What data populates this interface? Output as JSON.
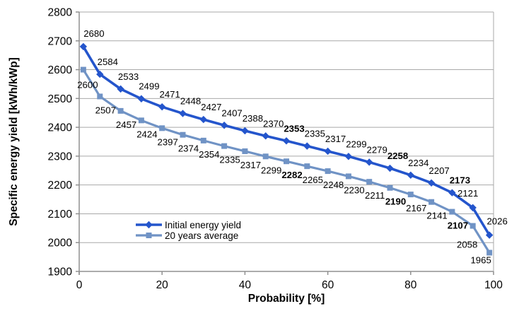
{
  "chart_data": {
    "type": "line",
    "title": "",
    "xlabel": "Probability [%]",
    "ylabel": "Specific energy yield [kWh/kWp]",
    "xlim": [
      0,
      100
    ],
    "ylim": [
      1900,
      2800
    ],
    "x_ticks": [
      0,
      20,
      40,
      60,
      80,
      100
    ],
    "y_ticks": [
      1900,
      2000,
      2100,
      2200,
      2300,
      2400,
      2500,
      2600,
      2700,
      2800
    ],
    "grid": "horizontal",
    "legend_position": "inside-bottom-left",
    "x": [
      1,
      5,
      10,
      15,
      20,
      25,
      30,
      35,
      40,
      45,
      50,
      55,
      60,
      65,
      70,
      75,
      80,
      85,
      90,
      95,
      99
    ],
    "series": [
      {
        "name": "Initial energy yield",
        "marker": "diamond",
        "color": "#2455cc",
        "values": [
          2680,
          2584,
          2533,
          2499,
          2471,
          2448,
          2427,
          2407,
          2388,
          2370,
          2353,
          2335,
          2317,
          2299,
          2279,
          2258,
          2234,
          2207,
          2173,
          2121,
          2026
        ],
        "bold_label_indices": [
          10,
          15,
          18
        ]
      },
      {
        "name": "20 years average",
        "marker": "square",
        "color": "#7093c5",
        "values": [
          2600,
          2507,
          2457,
          2424,
          2397,
          2374,
          2354,
          2335,
          2317,
          2299,
          2282,
          2265,
          2248,
          2230,
          2211,
          2190,
          2167,
          2141,
          2107,
          2058,
          1965
        ],
        "bold_label_indices": [
          10,
          15,
          18
        ]
      }
    ],
    "colors": {
      "grid": "#a9a9a9",
      "axis": "#909090",
      "text": "#000000",
      "background": "#ffffff",
      "series1": "#2455cc",
      "series2": "#7093c5"
    }
  }
}
